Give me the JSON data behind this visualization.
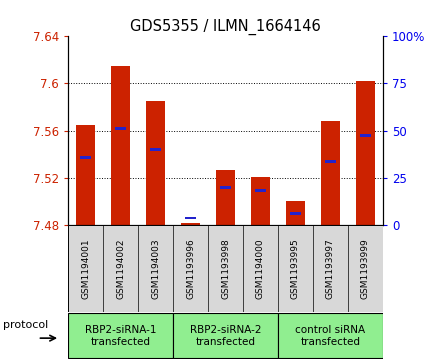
{
  "title": "GDS5355 / ILMN_1664146",
  "samples": [
    "GSM1194001",
    "GSM1194002",
    "GSM1194003",
    "GSM1193996",
    "GSM1193998",
    "GSM1194000",
    "GSM1193995",
    "GSM1193997",
    "GSM1193999"
  ],
  "red_values": [
    7.565,
    7.615,
    7.585,
    7.482,
    7.527,
    7.521,
    7.5,
    7.568,
    7.602
  ],
  "blue_values": [
    7.537,
    7.562,
    7.544,
    7.486,
    7.512,
    7.509,
    7.49,
    7.534,
    7.556
  ],
  "ymin": 7.48,
  "ymax": 7.64,
  "yticks": [
    7.48,
    7.52,
    7.56,
    7.6,
    7.64
  ],
  "right_yticks": [
    0,
    25,
    50,
    75,
    100
  ],
  "bar_base": 7.48,
  "groups": [
    {
      "label": "RBP2-siRNA-1\ntransfected",
      "start": 0,
      "end": 3,
      "color": "#90ee90"
    },
    {
      "label": "RBP2-siRNA-2\ntransfected",
      "start": 3,
      "end": 6,
      "color": "#90ee90"
    },
    {
      "label": "control siRNA\ntransfected",
      "start": 6,
      "end": 9,
      "color": "#90ee90"
    }
  ],
  "red_color": "#cc2200",
  "blue_color": "#2222cc",
  "bar_width": 0.55,
  "tick_label_color_left": "#cc2200",
  "tick_label_color_right": "#0000ee",
  "grid_dotted_at": [
    7.52,
    7.56,
    7.6
  ]
}
